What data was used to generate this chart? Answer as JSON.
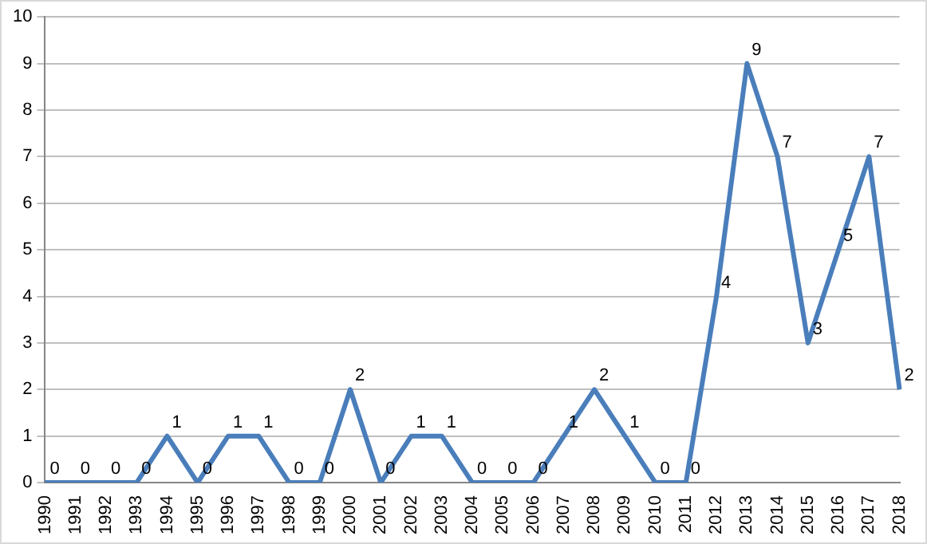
{
  "chart_data": {
    "type": "line",
    "categories": [
      "1990",
      "1991",
      "1992",
      "1993",
      "1994",
      "1995",
      "1996",
      "1997",
      "1998",
      "1999",
      "2000",
      "2001",
      "2002",
      "2003",
      "2004",
      "2005",
      "2006",
      "2007",
      "2008",
      "2009",
      "2010",
      "2011",
      "2012",
      "2013",
      "2014",
      "2015",
      "2016",
      "2017",
      "2018"
    ],
    "series": [
      {
        "color": "#4a7ebb",
        "values": [
          0,
          0,
          0,
          0,
          1,
          0,
          1,
          1,
          0,
          0,
          2,
          0,
          1,
          1,
          0,
          0,
          0,
          1,
          2,
          1,
          0,
          0,
          4,
          9,
          7,
          3,
          5,
          7,
          2
        ]
      }
    ],
    "ylim": [
      0,
      10
    ],
    "yticks": [
      0,
      1,
      2,
      3,
      4,
      5,
      6,
      7,
      8,
      9,
      10
    ],
    "grid": "y",
    "legend": false,
    "marker": "none",
    "line_style": "solid",
    "data_labels": true
  }
}
